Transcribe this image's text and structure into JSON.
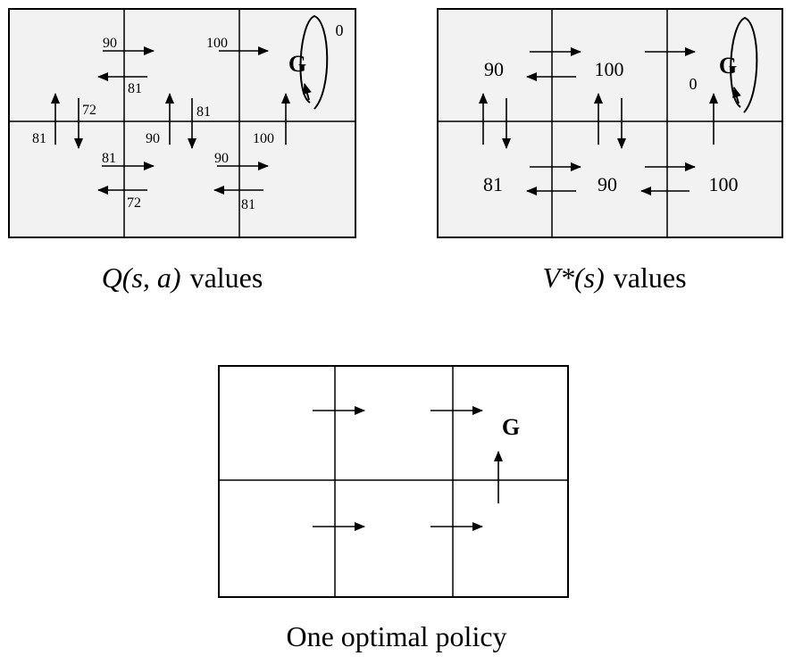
{
  "colors": {
    "ink": "#000000",
    "grid_fill": "#f2f2f2",
    "page": "#ffffff"
  },
  "q_values": {
    "caption_prefix": "Q",
    "caption_args": "(s, a)",
    "caption_word": "values",
    "goal_label": "G",
    "loop_label": "0",
    "arrow_values": [
      "90",
      "100",
      "81",
      "72",
      "81",
      "90",
      "81",
      "100",
      "81",
      "72",
      "90",
      "81"
    ]
  },
  "v_values": {
    "caption_prefix": "V*",
    "caption_args": "(s)",
    "caption_word": "values",
    "goal_label": "G",
    "loop_label": "0",
    "state_values": [
      "90",
      "100",
      "81",
      "90",
      "100"
    ]
  },
  "policy": {
    "caption": "One optimal policy",
    "goal_label": "G"
  }
}
